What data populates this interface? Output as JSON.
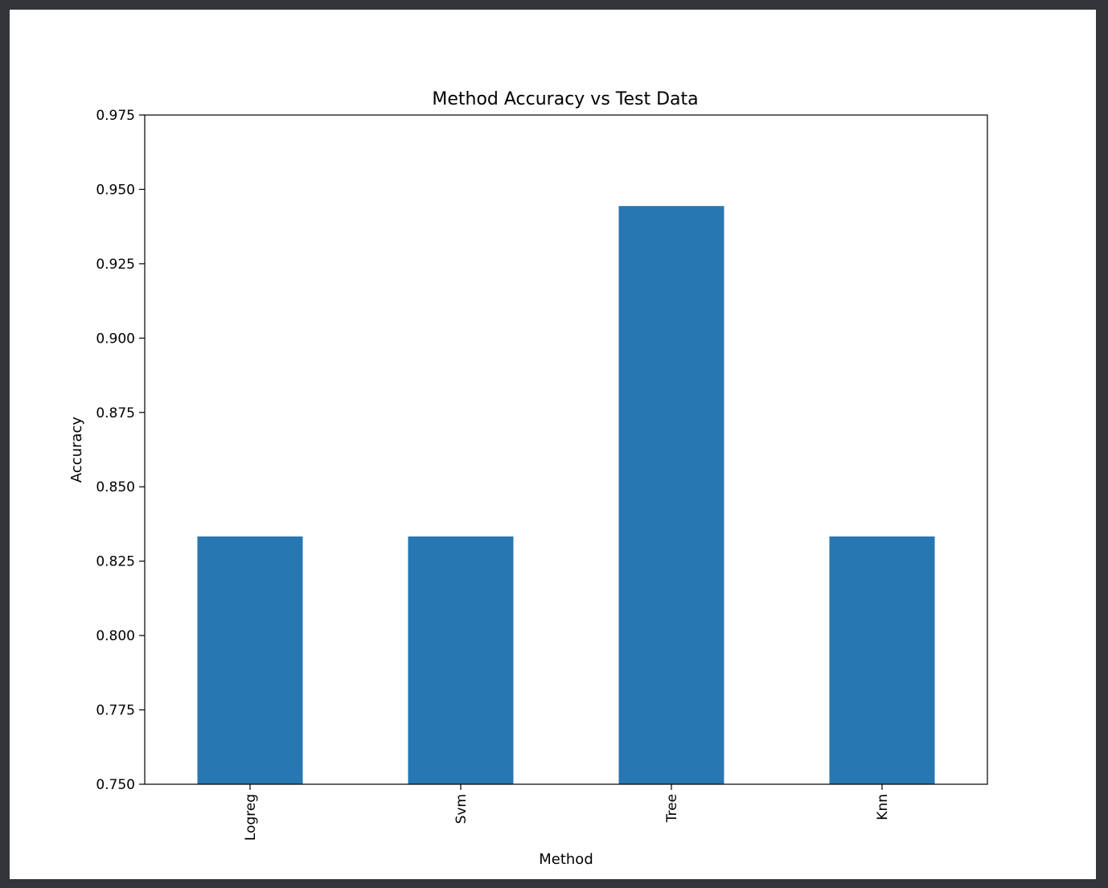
{
  "chart_data": {
    "type": "bar",
    "title": "Method Accuracy vs Test Data",
    "xlabel": "Method",
    "ylabel": "Accuracy",
    "categories": [
      "Logreg",
      "Svm",
      "Tree",
      "Knn"
    ],
    "values": [
      0.8333,
      0.8333,
      0.9444,
      0.8333
    ],
    "ylim": [
      0.75,
      0.975
    ],
    "yticks": [
      "0.750",
      "0.775",
      "0.800",
      "0.825",
      "0.850",
      "0.875",
      "0.900",
      "0.925",
      "0.950",
      "0.975"
    ],
    "bar_color": "#2677b2",
    "grid": false,
    "legend": "none"
  }
}
